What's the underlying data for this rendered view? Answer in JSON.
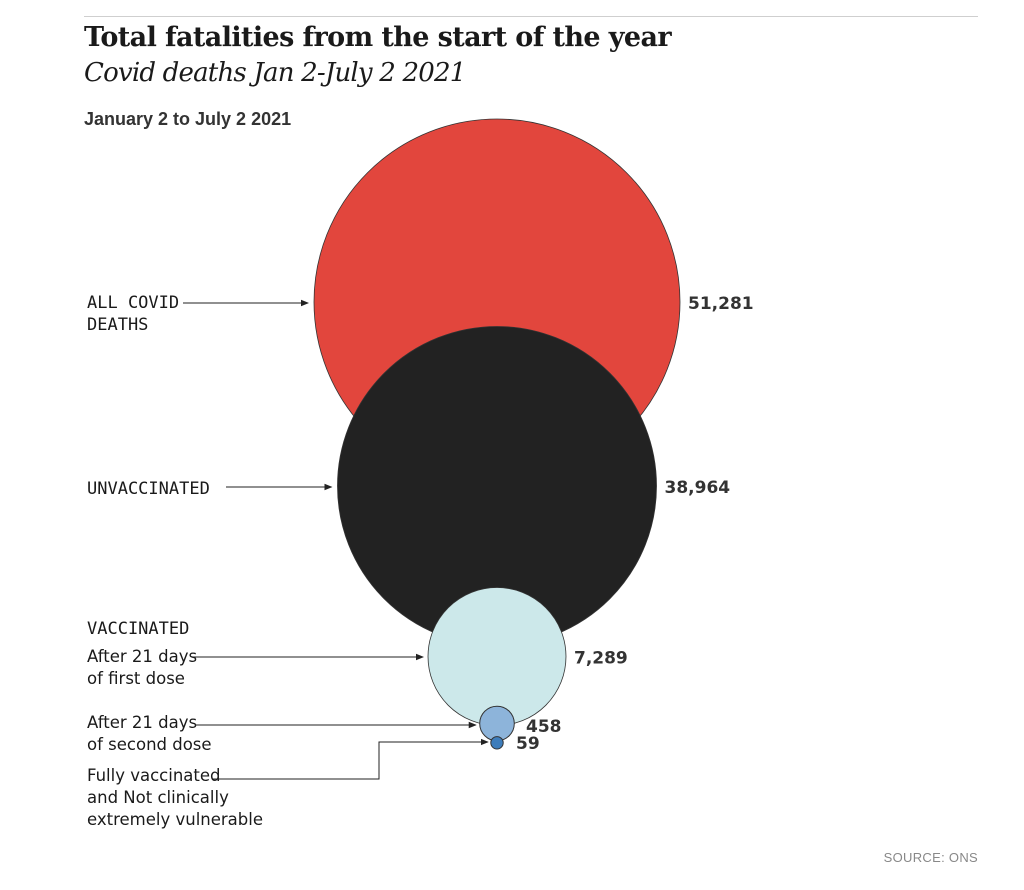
{
  "header": {
    "title": "Total fatalities from the start of the year",
    "subtitle": "Covid deaths Jan 2-July 2 2021",
    "date_range": "January 2 to July 2 2021"
  },
  "source": "SOURCE: ONS",
  "chart_data": {
    "type": "bubble",
    "title": "Total fatalities from the start of the year",
    "subtitle": "Covid deaths Jan 2-July 2 2021",
    "period": "January 2 to July 2 2021",
    "group_labels": [
      "VACCINATED"
    ],
    "series": [
      {
        "id": "all",
        "label_lines": [
          "ALL COVID",
          "DEATHS"
        ],
        "value": 51281,
        "value_label": "51,281",
        "color": "#e2463d"
      },
      {
        "id": "unvaccinated",
        "label_lines": [
          "UNVACCINATED"
        ],
        "value": 38964,
        "value_label": "38,964",
        "color": "#222222"
      },
      {
        "id": "first_dose",
        "label_lines": [
          "After 21 days",
          "of first dose"
        ],
        "value": 7289,
        "value_label": "7,289",
        "color": "#cce8ea"
      },
      {
        "id": "second_dose",
        "label_lines": [
          "After 21 days",
          "of second dose"
        ],
        "value": 458,
        "value_label": "458",
        "color": "#8db4da"
      },
      {
        "id": "fully_not_cev",
        "label_lines": [
          "Fully vaccinated",
          "and Not clinically",
          "extremely vulnerable"
        ],
        "value": 59,
        "value_label": "59",
        "color": "#3e7dbb"
      }
    ]
  }
}
